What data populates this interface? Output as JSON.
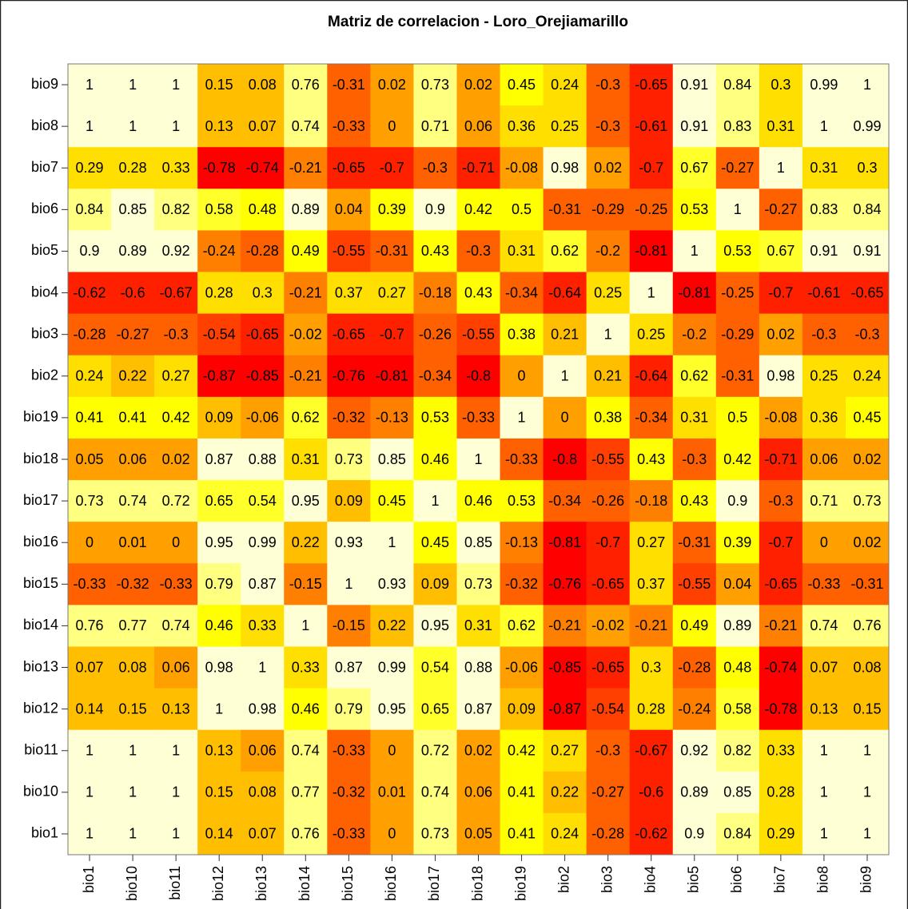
{
  "chart_data": {
    "type": "heatmap",
    "title": "Matriz de correlacion - Loro_Orejiamarillo",
    "x": [
      "bio1",
      "bio10",
      "bio11",
      "bio12",
      "bio13",
      "bio14",
      "bio15",
      "bio16",
      "bio17",
      "bio18",
      "bio19",
      "bio2",
      "bio3",
      "bio4",
      "bio5",
      "bio6",
      "bio7",
      "bio8",
      "bio9"
    ],
    "y": [
      "bio9",
      "bio8",
      "bio7",
      "bio6",
      "bio5",
      "bio4",
      "bio3",
      "bio2",
      "bio19",
      "bio18",
      "bio17",
      "bio16",
      "bio15",
      "bio14",
      "bio13",
      "bio12",
      "bio11",
      "bio10",
      "bio1"
    ],
    "colors": [
      "#FF0000",
      "#FF2000",
      "#FF4000",
      "#FF6000",
      "#FF8000",
      "#FF9F00",
      "#FFBF00",
      "#FFDF00",
      "#FFFF00",
      "#FFFF2A",
      "#FFFF80",
      "#FFFFD5"
    ],
    "values": [
      [
        1,
        1,
        1,
        0.15,
        0.08,
        0.76,
        -0.31,
        0.02,
        0.73,
        0.02,
        0.45,
        0.24,
        -0.3,
        -0.65,
        0.91,
        0.84,
        0.3,
        0.99,
        1
      ],
      [
        1,
        1,
        1,
        0.13,
        0.07,
        0.74,
        -0.33,
        0,
        0.71,
        0.06,
        0.36,
        0.25,
        -0.3,
        -0.61,
        0.91,
        0.83,
        0.31,
        1,
        0.99
      ],
      [
        0.29,
        0.28,
        0.33,
        -0.78,
        -0.74,
        -0.21,
        -0.65,
        -0.7,
        -0.3,
        -0.71,
        -0.08,
        0.98,
        0.02,
        -0.7,
        0.67,
        -0.27,
        1,
        0.31,
        0.3
      ],
      [
        0.84,
        0.85,
        0.82,
        0.58,
        0.48,
        0.89,
        0.04,
        0.39,
        0.9,
        0.42,
        0.5,
        -0.31,
        -0.29,
        -0.25,
        0.53,
        1,
        -0.27,
        0.83,
        0.84
      ],
      [
        0.9,
        0.89,
        0.92,
        -0.24,
        -0.28,
        0.49,
        -0.55,
        -0.31,
        0.43,
        -0.3,
        0.31,
        0.62,
        -0.2,
        -0.81,
        1,
        0.53,
        0.67,
        0.91,
        0.91
      ],
      [
        -0.62,
        -0.6,
        -0.67,
        0.28,
        0.3,
        -0.21,
        0.37,
        0.27,
        -0.18,
        0.43,
        -0.34,
        -0.64,
        0.25,
        1,
        -0.81,
        -0.25,
        -0.7,
        -0.61,
        -0.65
      ],
      [
        -0.28,
        -0.27,
        -0.3,
        -0.54,
        -0.65,
        -0.02,
        -0.65,
        -0.7,
        -0.26,
        -0.55,
        0.38,
        0.21,
        1,
        0.25,
        -0.2,
        -0.29,
        0.02,
        -0.3,
        -0.3
      ],
      [
        0.24,
        0.22,
        0.27,
        -0.87,
        -0.85,
        -0.21,
        -0.76,
        -0.81,
        -0.34,
        -0.8,
        0,
        1,
        0.21,
        -0.64,
        0.62,
        -0.31,
        0.98,
        0.25,
        0.24
      ],
      [
        0.41,
        0.41,
        0.42,
        0.09,
        -0.06,
        0.62,
        -0.32,
        -0.13,
        0.53,
        -0.33,
        1,
        0,
        0.38,
        -0.34,
        0.31,
        0.5,
        -0.08,
        0.36,
        0.45
      ],
      [
        0.05,
        0.06,
        0.02,
        0.87,
        0.88,
        0.31,
        0.73,
        0.85,
        0.46,
        1,
        -0.33,
        -0.8,
        -0.55,
        0.43,
        -0.3,
        0.42,
        -0.71,
        0.06,
        0.02
      ],
      [
        0.73,
        0.74,
        0.72,
        0.65,
        0.54,
        0.95,
        0.09,
        0.45,
        1,
        0.46,
        0.53,
        -0.34,
        -0.26,
        -0.18,
        0.43,
        0.9,
        -0.3,
        0.71,
        0.73
      ],
      [
        0,
        0.01,
        0,
        0.95,
        0.99,
        0.22,
        0.93,
        1,
        0.45,
        0.85,
        -0.13,
        -0.81,
        -0.7,
        0.27,
        -0.31,
        0.39,
        -0.7,
        0,
        0.02
      ],
      [
        -0.33,
        -0.32,
        -0.33,
        0.79,
        0.87,
        -0.15,
        1,
        0.93,
        0.09,
        0.73,
        -0.32,
        -0.76,
        -0.65,
        0.37,
        -0.55,
        0.04,
        -0.65,
        -0.33,
        -0.31
      ],
      [
        0.76,
        0.77,
        0.74,
        0.46,
        0.33,
        1,
        -0.15,
        0.22,
        0.95,
        0.31,
        0.62,
        -0.21,
        -0.02,
        -0.21,
        0.49,
        0.89,
        -0.21,
        0.74,
        0.76
      ],
      [
        0.07,
        0.08,
        0.06,
        0.98,
        1,
        0.33,
        0.87,
        0.99,
        0.54,
        0.88,
        -0.06,
        -0.85,
        -0.65,
        0.3,
        -0.28,
        0.48,
        -0.74,
        0.07,
        0.08
      ],
      [
        0.14,
        0.15,
        0.13,
        1,
        0.98,
        0.46,
        0.79,
        0.95,
        0.65,
        0.87,
        0.09,
        -0.87,
        -0.54,
        0.28,
        -0.24,
        0.58,
        -0.78,
        0.13,
        0.15
      ],
      [
        1,
        1,
        1,
        0.13,
        0.06,
        0.74,
        -0.33,
        0,
        0.72,
        0.02,
        0.42,
        0.27,
        -0.3,
        -0.67,
        0.92,
        0.82,
        0.33,
        1,
        1
      ],
      [
        1,
        1,
        1,
        0.15,
        0.08,
        0.77,
        -0.32,
        0.01,
        0.74,
        0.06,
        0.41,
        0.22,
        -0.27,
        -0.6,
        0.89,
        0.85,
        0.28,
        1,
        1
      ],
      [
        1,
        1,
        1,
        0.14,
        0.07,
        0.76,
        -0.33,
        0,
        0.73,
        0.05,
        0.41,
        0.24,
        -0.28,
        -0.62,
        0.9,
        0.84,
        0.29,
        1,
        1
      ]
    ]
  }
}
